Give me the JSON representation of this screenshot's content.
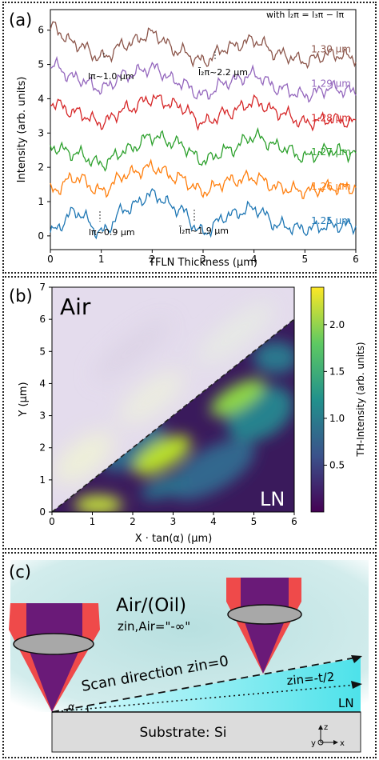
{
  "panel_a": {
    "label": "(a)",
    "note": "with l̄₂π = l₃π − lπ",
    "ylabel": "Intensity (arb. units)",
    "xlabel": "TFLN Thickness (μm)",
    "x_ticks": [
      "0",
      "1",
      "2",
      "3",
      "4",
      "5",
      "6"
    ],
    "y_ticks": [
      "0",
      "1",
      "2",
      "3",
      "4",
      "5",
      "6"
    ],
    "annotations": {
      "top_lpi": "lπ~1.0 μm",
      "top_l2pi": "l̄₂π~2.2 μm",
      "bottom_lpi": "lπ~0.9 μm",
      "bottom_l2pi": "l̄₂π~1.9 μm"
    }
  },
  "chart_data": [
    {
      "type": "line",
      "xlabel": "TFLN Thickness (μm)",
      "ylabel": "Intensity (arb. units)",
      "xlim": [
        0,
        6
      ],
      "ylim": [
        -0.4,
        6.6
      ],
      "grid": false,
      "series": [
        {
          "name": "1.25 μm",
          "color": "#1f77b4",
          "offset": 0,
          "x": [
            0,
            0.5,
            1,
            1.5,
            2,
            2.5,
            3,
            3.5,
            4,
            4.5,
            5,
            5.5,
            6
          ],
          "values": [
            0.1,
            0.7,
            0.1,
            0.8,
            1.2,
            0.8,
            0.1,
            0.6,
            0.8,
            0.3,
            0.2,
            0.3,
            0.3
          ]
        },
        {
          "name": "1.26 μm",
          "color": "#ff7f0e",
          "offset": 1,
          "x": [
            0,
            0.5,
            1,
            1.5,
            2,
            2.5,
            3,
            3.5,
            4,
            4.5,
            5,
            5.5,
            6
          ],
          "values": [
            1.3,
            1.7,
            1.3,
            1.8,
            2.0,
            1.7,
            1.3,
            1.6,
            1.7,
            1.4,
            1.3,
            1.4,
            1.4
          ]
        },
        {
          "name": "1.27 μm",
          "color": "#2ca02c",
          "offset": 2,
          "x": [
            0,
            0.5,
            1,
            1.5,
            2,
            2.5,
            3,
            3.5,
            4,
            4.5,
            5,
            5.5,
            6
          ],
          "values": [
            2.6,
            2.4,
            2.1,
            2.5,
            2.9,
            2.7,
            2.2,
            2.5,
            2.9,
            2.6,
            2.3,
            2.5,
            2.4
          ]
        },
        {
          "name": "1.28 μm",
          "color": "#d62728",
          "offset": 3,
          "x": [
            0,
            0.5,
            1,
            1.5,
            2,
            2.5,
            3,
            3.5,
            4,
            4.5,
            5,
            5.5,
            6
          ],
          "values": [
            3.9,
            3.6,
            3.3,
            3.7,
            4.0,
            3.8,
            3.3,
            3.6,
            3.9,
            3.6,
            3.3,
            3.4,
            3.3
          ]
        },
        {
          "name": "1.29 μm",
          "color": "#9467bd",
          "offset": 4,
          "x": [
            0,
            0.5,
            1,
            1.5,
            2,
            2.5,
            3,
            3.5,
            4,
            4.5,
            5,
            5.5,
            6
          ],
          "values": [
            5.0,
            4.6,
            4.3,
            4.7,
            4.9,
            4.5,
            4.1,
            4.5,
            4.7,
            4.3,
            4.1,
            4.3,
            4.2
          ]
        },
        {
          "name": "1.30 μm",
          "color": "#8c564b",
          "offset": 5,
          "x": [
            0,
            0.5,
            1,
            1.5,
            2,
            2.5,
            3,
            3.5,
            4,
            4.5,
            5,
            5.5,
            6
          ],
          "values": [
            6.1,
            5.6,
            5.2,
            5.6,
            5.9,
            5.4,
            5.1,
            5.5,
            5.7,
            5.3,
            5.1,
            5.3,
            5.2
          ]
        }
      ]
    },
    {
      "type": "heatmap",
      "xlabel": "X · tan(α) (μm)",
      "ylabel": "Y (μm)",
      "xlim": [
        0,
        6
      ],
      "ylim": [
        0,
        7
      ],
      "colorbar_label": "TH-Intensity (arb. units)",
      "colorbar_ticks": [
        "0.5",
        "1.0",
        "1.5",
        "2.0"
      ],
      "colorbar_range": [
        0,
        2.4
      ],
      "region_labels": [
        "Air",
        "LN"
      ],
      "blobs": [
        {
          "x": 1.1,
          "y": 0.2,
          "intensity": 2.3
        },
        {
          "x": 2.6,
          "y": 1.6,
          "intensity": 2.4
        },
        {
          "x": 4.6,
          "y": 3.1,
          "intensity": 2.3
        },
        {
          "x": 2.6,
          "y": 0.3,
          "intensity": 1.0
        },
        {
          "x": 4.0,
          "y": 1.0,
          "intensity": 1.2
        },
        {
          "x": 5.5,
          "y": 1.8,
          "intensity": 1.1
        },
        {
          "x": 5.5,
          "y": 4.5,
          "intensity": 1.6
        }
      ]
    }
  ],
  "panel_b": {
    "label": "(b)",
    "air_label": "Air",
    "ln_label": "LN",
    "xlabel": "X · tan(α) (μm)",
    "ylabel": "Y (μm)",
    "x_ticks": [
      "0",
      "1",
      "2",
      "3",
      "4",
      "5",
      "6"
    ],
    "y_ticks": [
      "0",
      "1",
      "2",
      "3",
      "4",
      "5",
      "6",
      "7"
    ],
    "colorbar_label": "TH-Intensity (arb. units)",
    "colorbar_ticks": [
      "0.5",
      "1.0",
      "1.5",
      "2.0"
    ]
  },
  "panel_c": {
    "label": "(c)",
    "medium": "Air/(Oil)",
    "z_air": "zin,Air=\"-∞\"",
    "scan_direction": "Scan direction zin=0",
    "z_half": "zin=-t/2",
    "ln_label": "LN",
    "angle_label": "α",
    "substrate": "Substrate: Si",
    "axes": {
      "z": "z",
      "y": "y",
      "x": "x"
    },
    "colors": {
      "cone_outer": "#ef4a4a",
      "cone_inner": "#6a1a78",
      "lens": "#a8a8a8",
      "film": "#5ae4ec",
      "background": "#cdeaea",
      "substrate": "#dcdcdc"
    }
  }
}
